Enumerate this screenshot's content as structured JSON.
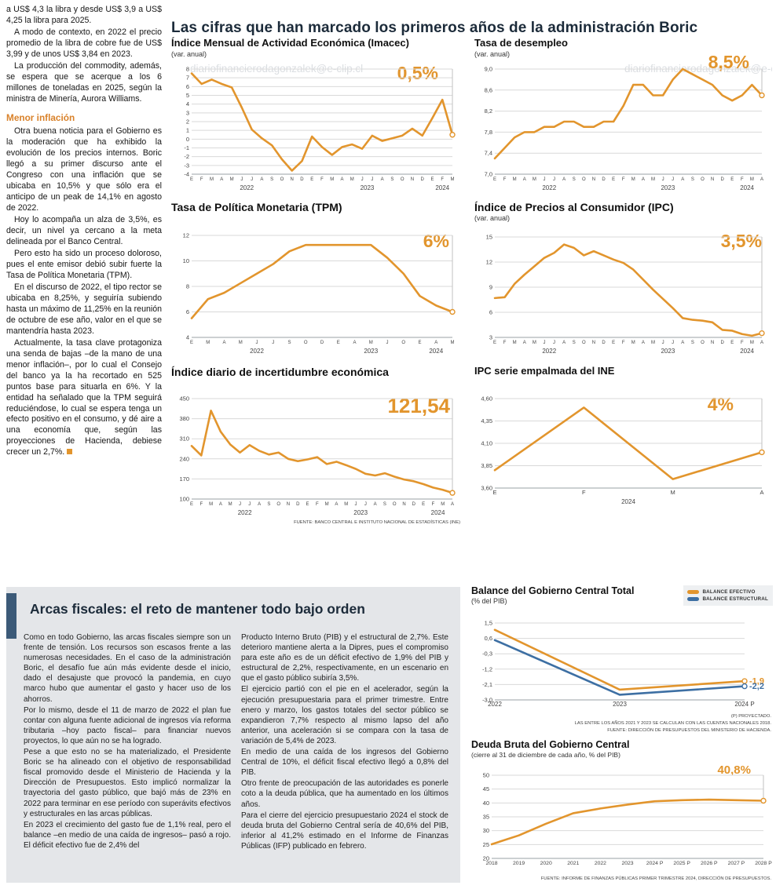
{
  "watermark": "diariofinancierodagonzalek@e-clip.cl",
  "main_title": "Las cifras que han marcado los primeros años de la administración Boric",
  "colors": {
    "accent_orange": "#E2952D",
    "accent_blue": "#3D6FA3",
    "fiscal_box_bg": "#e4e6e9",
    "fiscal_accent_bar": "#3c5a78"
  },
  "left_article": {
    "paragraphs_top": [
      "a US$ 4,3 la libra y desde US$ 3,9 a US$ 4,25 la libra para 2025.",
      "A modo de contexto, en 2022 el precio promedio de la libra de cobre fue de US$ 3,99 y de unos US$ 3,84 en 2023.",
      "La producción del commodity, además, se espera que se acerque a los 6 millones de toneladas en 2025, según la ministra de Minería, Aurora Williams."
    ],
    "heading": "Menor inflación",
    "paragraphs_bottom": [
      "Otra buena noticia para el Gobierno es la moderación que ha exhibido la evolución de los precios internos. Boric llegó a su primer discurso ante el Congreso con una inflación que se ubicaba en 10,5% y que sólo era el anticipo de un peak de 14,1% en agosto de 2022.",
      "Hoy lo acompaña un alza de 3,5%, es decir, un nivel ya cercano a la meta delineada por el Banco Central.",
      "Pero esto ha sido un proceso doloroso, pues el ente emisor debió subir fuerte la Tasa de Política Monetaria (TPM).",
      "En el discurso de 2022, el tipo rector se ubicaba en 8,25%, y seguiría subiendo hasta un máximo de 11,25% en la reunión de octubre de ese año, valor en el que se mantendría hasta 2023.",
      "Actualmente, la tasa clave protagoniza una senda de bajas –de la mano de una menor inflación–, por lo cual el Consejo del banco ya la ha recortado en 525 puntos base para situarla en 6%. Y la entidad ha señalado que la TPM seguirá reduciéndose, lo cual se espera tenga un efecto positivo en el consumo, y dé aire a una economía que, según las proyecciones de Hacienda, debiese crecer un 2,7%."
    ]
  },
  "fiscal": {
    "title": "Arcas fiscales: el reto de mantener todo bajo orden",
    "col1": [
      "Como en todo Gobierno, las arcas fiscales siempre son un frente de tensión. Los recursos son escasos frente a las numerosas necesidades. En el caso de la administración Boric, el desafío fue aún más evidente desde el inicio, dado el desajuste que provocó la pandemia, en cuyo marco hubo que aumentar el gasto y hacer uso de los ahorros.",
      "Por lo mismo, desde el 11 de marzo de 2022 el plan fue contar con alguna fuente adicional de ingresos vía reforma tributaria –hoy pacto fiscal– para financiar nuevos proyectos, lo que aún no se ha logrado.",
      "Pese a que esto no se ha materializado, el Presidente Boric se ha alineado con el objetivo de responsabilidad fiscal promovido desde el Ministerio de Hacienda y la Dirección de Presupuestos. Esto implicó normalizar la trayectoria del gasto público, que bajó más de 23% en 2022 para terminar en ese período con superávits efectivos y estructurales en las arcas públicas.",
      "En 2023 el crecimiento del gasto fue de 1,1% real, pero el balance –en medio de una caída de ingresos– pasó a rojo. El déficit efectivo fue de 2,4% del"
    ],
    "col2": [
      "Producto Interno Bruto (PIB) y el estructural de 2,7%. Este deterioro mantiene alerta a la Dipres, pues el compromiso para este año es de un déficit efectivo de 1,9% del PIB y estructural de 2,2%, respectivamente, en un escenario en que el gasto público subiría 3,5%.",
      "El ejercicio partió con el pie en el acelerador, según la ejecución presupuestaria para el primer trimestre. Entre enero y marzo, los gastos totales del sector público se expandieron 7,7% respecto al mismo lapso del año anterior, una aceleración si se compara con la tasa de variación de 5,4% de 2023.",
      "En medio de una caída de los ingresos del Gobierno Central de 10%, el déficit fiscal efectivo llegó a 0,8% del PIB.",
      "Otro frente de preocupación de las autoridades es ponerle coto a la deuda pública, que ha aumentado en los últimos años.",
      "Para el cierre del ejercicio presupuestario 2024 el stock de deuda bruta del Gobierno Central sería de 40,6% del PIB, inferior al 41,2% estimado en el Informe de Finanzas Públicas (IFP) publicado en febrero."
    ]
  },
  "chart_data": [
    {
      "type": "line",
      "title": "Índice Mensual de Actividad Económica (Imacec)",
      "subtitle": "(var. anual)",
      "value_label": "0,5%",
      "ylim": [
        -4,
        8
      ],
      "y_ticks": [
        [
          8,
          "8"
        ],
        [
          7,
          "7"
        ],
        [
          6,
          "6"
        ],
        [
          5,
          "5"
        ],
        [
          4,
          "4"
        ],
        [
          3,
          "3"
        ],
        [
          2,
          "2"
        ],
        [
          1,
          "1"
        ],
        [
          0,
          "0"
        ],
        [
          -1,
          "-1"
        ],
        [
          -2,
          "-2"
        ],
        [
          -3,
          "-3"
        ],
        [
          -4,
          "-4"
        ]
      ],
      "x": [
        "E",
        "F",
        "M",
        "A",
        "M",
        "J",
        "J",
        "A",
        "S",
        "O",
        "N",
        "D",
        "E",
        "F",
        "M",
        "A",
        "M",
        "J",
        "J",
        "A",
        "S",
        "O",
        "N",
        "D",
        "E",
        "F",
        "M"
      ],
      "years": [
        {
          "label": "2022",
          "mid": 5.5
        },
        {
          "label": "2023",
          "mid": 17.5
        },
        {
          "label": "2024",
          "mid": 25
        }
      ],
      "end_line": true,
      "series": [
        {
          "name": "Imacec var. anual",
          "color": "#E2952D",
          "values": [
            7.5,
            6.3,
            6.8,
            6.3,
            5.9,
            3.6,
            1.1,
            0.1,
            -0.7,
            -2.3,
            -3.6,
            -2.5,
            0.3,
            -0.9,
            -1.8,
            -0.9,
            -0.6,
            -1.1,
            0.4,
            -0.2,
            0.1,
            0.4,
            1.2,
            0.4,
            2.4,
            4.5,
            0.5
          ]
        }
      ]
    },
    {
      "type": "line",
      "title": "Tasa de desempleo",
      "subtitle": "(var. anual)",
      "value_label": "8,5%",
      "ylim": [
        7.0,
        9.0
      ],
      "y_ticks": [
        [
          9,
          "9,0"
        ],
        [
          8.6,
          "8,6"
        ],
        [
          8.2,
          "8,2"
        ],
        [
          7.8,
          "7,8"
        ],
        [
          7.4,
          "7,4"
        ],
        [
          7,
          "7,0"
        ]
      ],
      "x": [
        "E",
        "F",
        "M",
        "A",
        "M",
        "J",
        "J",
        "A",
        "S",
        "O",
        "N",
        "D",
        "E",
        "F",
        "M",
        "A",
        "M",
        "J",
        "J",
        "A",
        "S",
        "O",
        "N",
        "D",
        "E",
        "F",
        "M",
        "A"
      ],
      "years": [
        {
          "label": "2022",
          "mid": 5.5
        },
        {
          "label": "2023",
          "mid": 17.5
        },
        {
          "label": "2024",
          "mid": 25.5
        }
      ],
      "end_line": true,
      "series": [
        {
          "name": "Tasa de desempleo",
          "color": "#E2952D",
          "values": [
            7.3,
            7.5,
            7.7,
            7.8,
            7.8,
            7.9,
            7.9,
            8.0,
            8.0,
            7.9,
            7.9,
            8.0,
            8.0,
            8.3,
            8.7,
            8.7,
            8.5,
            8.5,
            8.8,
            9.0,
            8.9,
            8.8,
            8.7,
            8.5,
            8.4,
            8.5,
            8.7,
            8.5
          ]
        }
      ]
    },
    {
      "type": "line",
      "title": "Tasa de Política Monetaria (TPM)",
      "subtitle": "",
      "value_label": "6%",
      "ylim": [
        4,
        12
      ],
      "y_ticks": [
        [
          12,
          "12"
        ],
        [
          10,
          "10"
        ],
        [
          8,
          "8"
        ],
        [
          6,
          "6"
        ],
        [
          4,
          "4"
        ]
      ],
      "x": [
        "E",
        "M",
        "A",
        "M",
        "J",
        "J",
        "S",
        "O",
        "D",
        "E",
        "A",
        "M",
        "J",
        "O",
        "E",
        "A",
        "M"
      ],
      "years": [
        {
          "label": "2022",
          "mid": 4
        },
        {
          "label": "2023",
          "mid": 11
        },
        {
          "label": "2024",
          "mid": 15
        }
      ],
      "end_line": true,
      "series": [
        {
          "name": "TPM",
          "color": "#E2952D",
          "values": [
            5.5,
            7.0,
            7.5,
            8.25,
            9.0,
            9.75,
            10.75,
            11.25,
            11.25,
            11.25,
            11.25,
            11.25,
            10.25,
            9.0,
            7.25,
            6.5,
            6.0
          ]
        }
      ]
    },
    {
      "type": "line",
      "title": "Índice de Precios al Consumidor (IPC)",
      "subtitle": "(var. anual)",
      "value_label": "3,5%",
      "ylim": [
        3,
        15
      ],
      "y_ticks": [
        [
          15,
          "15"
        ],
        [
          12,
          "12"
        ],
        [
          9,
          "9"
        ],
        [
          6,
          "6"
        ],
        [
          3,
          "3"
        ]
      ],
      "x": [
        "E",
        "F",
        "M",
        "A",
        "M",
        "J",
        "J",
        "A",
        "S",
        "O",
        "N",
        "D",
        "E",
        "F",
        "M",
        "A",
        "M",
        "J",
        "J",
        "A",
        "S",
        "O",
        "N",
        "D",
        "E",
        "F",
        "M",
        "A"
      ],
      "years": [
        {
          "label": "2022",
          "mid": 5.5
        },
        {
          "label": "2023",
          "mid": 17.5
        },
        {
          "label": "2024",
          "mid": 25.5
        }
      ],
      "end_line": true,
      "series": [
        {
          "name": "IPC var. anual",
          "color": "#E2952D",
          "values": [
            7.7,
            7.8,
            9.4,
            10.5,
            11.5,
            12.5,
            13.1,
            14.1,
            13.7,
            12.8,
            13.3,
            12.8,
            12.3,
            11.9,
            11.1,
            9.9,
            8.7,
            7.6,
            6.5,
            5.3,
            5.1,
            5.0,
            4.8,
            3.9,
            3.8,
            3.4,
            3.2,
            3.5
          ]
        }
      ]
    },
    {
      "type": "line",
      "title": "Índice diario de incertidumbre económica",
      "subtitle": "",
      "value_label": "121,54",
      "ylim": [
        100,
        450
      ],
      "y_ticks": [
        [
          450,
          "450"
        ],
        [
          380,
          "380"
        ],
        [
          310,
          "310"
        ],
        [
          240,
          "240"
        ],
        [
          170,
          "170"
        ],
        [
          100,
          "100"
        ]
      ],
      "x": [
        "E",
        "F",
        "M",
        "A",
        "M",
        "J",
        "J",
        "A",
        "S",
        "O",
        "N",
        "D",
        "E",
        "F",
        "M",
        "A",
        "M",
        "J",
        "J",
        "A",
        "S",
        "O",
        "N",
        "D",
        "E",
        "F",
        "M",
        "A"
      ],
      "years": [
        {
          "label": "2022",
          "mid": 5.5
        },
        {
          "label": "2023",
          "mid": 17.5
        },
        {
          "label": "2024",
          "mid": 25.5
        }
      ],
      "end_line": true,
      "source": "FUENTE: BANCO CENTRAL E INSTITUTO NACIONAL DE ESTADÍSTICAS (INE)",
      "series": [
        {
          "name": "Incertidumbre económica",
          "color": "#E2952D",
          "values": [
            285,
            252,
            408,
            335,
            290,
            262,
            288,
            268,
            255,
            262,
            240,
            232,
            238,
            246,
            222,
            230,
            218,
            205,
            188,
            182,
            190,
            178,
            168,
            162,
            152,
            140,
            132,
            121.54
          ]
        }
      ]
    },
    {
      "type": "line",
      "title": "IPC serie empalmada del INE",
      "subtitle": "",
      "value_label": "4%",
      "ylim": [
        3.6,
        4.6
      ],
      "y_ticks": [
        [
          4.6,
          "4,60"
        ],
        [
          4.35,
          "4,35"
        ],
        [
          4.1,
          "4,10"
        ],
        [
          3.85,
          "3,85"
        ],
        [
          3.6,
          "3,60"
        ]
      ],
      "x": [
        "E",
        "F",
        "M",
        "A"
      ],
      "xfs": 7.5,
      "years": [
        {
          "label": "2024",
          "mid": 1.5
        }
      ],
      "end_line": true,
      "series": [
        {
          "name": "IPC serie empalmada",
          "color": "#E2952D",
          "values": [
            3.8,
            4.5,
            3.7,
            4.0
          ]
        }
      ]
    },
    {
      "type": "line",
      "title": "Balance del Gobierno Central Total",
      "subtitle": "(% del PIB)",
      "legend": [
        {
          "label": "BALANCE EFECTIVO",
          "color": "#E2952D"
        },
        {
          "label": "BALANCE ESTRUCTURAL",
          "color": "#3D6FA3"
        }
      ],
      "ylim": [
        -3.0,
        1.5
      ],
      "y_ticks": [
        [
          1.5,
          "1,5"
        ],
        [
          0.6,
          "0,6"
        ],
        [
          -0.3,
          "-0,3"
        ],
        [
          -1.2,
          "-1,2"
        ],
        [
          -2.1,
          "-2,1"
        ],
        [
          -3.0,
          "-3,0"
        ]
      ],
      "x": [
        "2022",
        "2023",
        "2024 P"
      ],
      "xfs": 8,
      "margins": {
        "l": 30,
        "r": 36
      },
      "notes": [
        "(P) PROYECTADO.",
        "LAS ENTRE LOS AÑOS 2021 Y 2023 SE CALCULAN CON LAS CUENTAS NACIONALES 2018.",
        "FUENTE: DIRECCIÓN DE PRESUPUESTOS DEL MINISTERIO DE HACIENDA."
      ],
      "series": [
        {
          "name": "Balance efectivo",
          "color": "#E2952D",
          "values": [
            1.1,
            -2.4,
            -1.9
          ],
          "end_label": "-1,9"
        },
        {
          "name": "Balance estructural",
          "color": "#3D6FA3",
          "values": [
            0.5,
            -2.7,
            -2.2
          ],
          "end_label": "-2,2"
        }
      ]
    },
    {
      "type": "line",
      "title": "Deuda Bruta del Gobierno Central",
      "subtitle": "(cierre al 31 de diciembre de cada año, % del PIB)",
      "value_label": "40,8%",
      "ylim": [
        20,
        50
      ],
      "y_ticks": [
        [
          50,
          "50"
        ],
        [
          45,
          "45"
        ],
        [
          40,
          "40"
        ],
        [
          35,
          "35"
        ],
        [
          30,
          "30"
        ],
        [
          25,
          "25"
        ],
        [
          20,
          "20"
        ]
      ],
      "x": [
        "2018",
        "2019",
        "2020",
        "2021",
        "2022",
        "2023",
        "2024 P",
        "2025 P",
        "2026 P",
        "2027 P",
        "2028 P"
      ],
      "xfs": 6.8,
      "end_line": true,
      "source": "FUENTE: INFORME DE FINANZAS PÚBLICAS PRIMER TRIMESTRE 2024, DIRECCIÓN DE PRESUPUESTOS.",
      "series": [
        {
          "name": "Deuda bruta",
          "color": "#E2952D",
          "values": [
            25.1,
            28.3,
            32.5,
            36.3,
            38.0,
            39.4,
            40.6,
            41.0,
            41.2,
            41.0,
            40.8
          ]
        }
      ]
    }
  ]
}
